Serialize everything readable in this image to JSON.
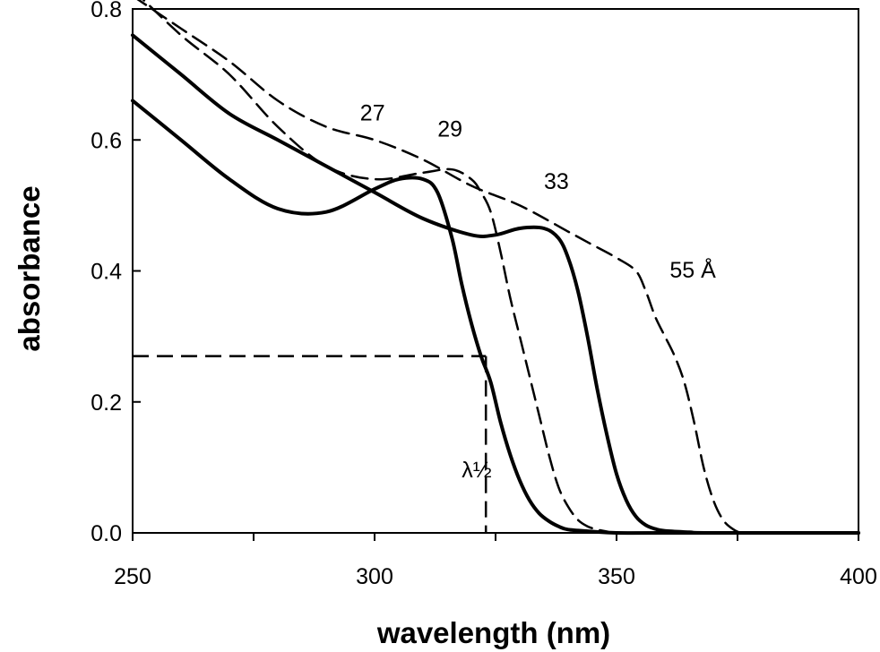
{
  "chart_data": {
    "type": "line",
    "title": "",
    "xlabel": "wavelength (nm)",
    "ylabel": "absorbance",
    "xlim": [
      250,
      400
    ],
    "ylim": [
      0.0,
      0.8
    ],
    "xticks": [
      250,
      300,
      350,
      400
    ],
    "xtick_labels": [
      "250",
      "300",
      "350",
      "400"
    ],
    "yticks": [
      0.0,
      0.2,
      0.4,
      0.6,
      0.8
    ],
    "ytick_labels": [
      "0.0",
      "0.2",
      "0.4",
      "0.6",
      "0.8"
    ],
    "grid": false,
    "series": [
      {
        "name": "27",
        "style": "solid",
        "x": [
          250,
          260,
          270,
          280,
          290,
          300,
          305,
          310,
          313,
          316,
          318,
          320,
          322,
          324,
          326,
          328,
          330,
          332,
          334,
          336,
          338,
          340,
          345,
          350,
          360,
          400
        ],
        "y": [
          0.66,
          0.6,
          0.54,
          0.495,
          0.49,
          0.525,
          0.54,
          0.54,
          0.52,
          0.45,
          0.38,
          0.32,
          0.27,
          0.23,
          0.17,
          0.12,
          0.08,
          0.05,
          0.03,
          0.018,
          0.01,
          0.005,
          0.002,
          0.0,
          0.0,
          0.0
        ]
      },
      {
        "name": "29",
        "style": "dashed",
        "x": [
          250,
          260,
          270,
          280,
          290,
          300,
          310,
          316,
          320,
          322,
          324,
          326,
          328,
          330,
          332,
          334,
          336,
          338,
          340,
          342,
          344,
          346,
          348,
          350,
          360,
          400
        ],
        "y": [
          0.83,
          0.76,
          0.7,
          0.62,
          0.56,
          0.54,
          0.55,
          0.555,
          0.54,
          0.52,
          0.49,
          0.43,
          0.36,
          0.3,
          0.24,
          0.18,
          0.12,
          0.07,
          0.04,
          0.02,
          0.01,
          0.005,
          0.002,
          0.0,
          0.0,
          0.0
        ]
      },
      {
        "name": "33",
        "style": "solid",
        "x": [
          250,
          260,
          270,
          280,
          290,
          300,
          310,
          320,
          325,
          330,
          335,
          338,
          340,
          342,
          344,
          346,
          348,
          350,
          352,
          354,
          356,
          358,
          360,
          365,
          370,
          400
        ],
        "y": [
          0.76,
          0.7,
          0.64,
          0.6,
          0.56,
          0.52,
          0.48,
          0.455,
          0.455,
          0.465,
          0.465,
          0.45,
          0.42,
          0.37,
          0.3,
          0.22,
          0.15,
          0.09,
          0.05,
          0.025,
          0.012,
          0.006,
          0.003,
          0.001,
          0.0,
          0.0
        ]
      },
      {
        "name": "55 Å",
        "style": "dashed",
        "x": [
          250,
          260,
          270,
          280,
          290,
          300,
          310,
          320,
          330,
          340,
          345,
          350,
          354,
          356,
          358,
          360,
          362,
          364,
          366,
          368,
          370,
          372,
          374,
          376,
          380,
          400
        ],
        "y": [
          0.82,
          0.77,
          0.72,
          0.66,
          0.62,
          0.6,
          0.57,
          0.53,
          0.5,
          0.46,
          0.44,
          0.42,
          0.4,
          0.37,
          0.33,
          0.3,
          0.27,
          0.23,
          0.17,
          0.1,
          0.05,
          0.02,
          0.006,
          0.0,
          0.0,
          0.0
        ]
      }
    ],
    "reference_lines": [
      {
        "style": "dashed",
        "x": [
          250,
          323
        ],
        "y": [
          0.27,
          0.27
        ]
      },
      {
        "style": "dashed",
        "x": [
          323,
          323
        ],
        "y": [
          0.27,
          0.0
        ]
      }
    ],
    "annotations": [
      {
        "text": "27",
        "x": 297,
        "y": 0.63
      },
      {
        "text": "29",
        "x": 313,
        "y": 0.605
      },
      {
        "text": "33",
        "x": 335,
        "y": 0.525
      },
      {
        "text": "55 Å",
        "x": 361,
        "y": 0.39
      },
      {
        "text": "λ½",
        "x": 318,
        "y": 0.085
      }
    ]
  }
}
